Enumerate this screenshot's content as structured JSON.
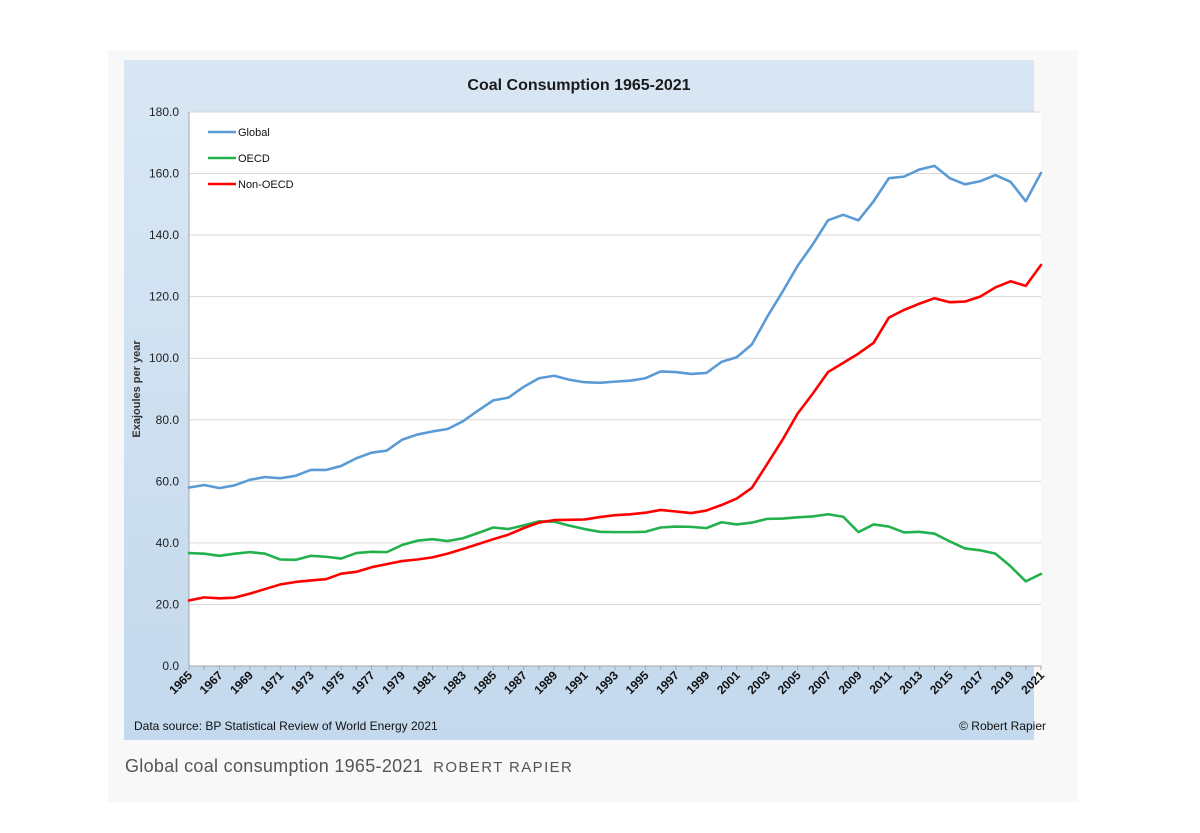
{
  "chart_data": {
    "type": "line",
    "title": "Coal Consumption 1965-2021",
    "xlabel": "",
    "ylabel": "Exajoules per year",
    "ylim": [
      0,
      180
    ],
    "yticks": [
      "0.0",
      "20.0",
      "40.0",
      "60.0",
      "80.0",
      "100.0",
      "120.0",
      "140.0",
      "160.0",
      "180.0"
    ],
    "x_tick_labels": [
      "1965",
      "1967",
      "1969",
      "1971",
      "1973",
      "1975",
      "1977",
      "1979",
      "1981",
      "1983",
      "1985",
      "1987",
      "1989",
      "1991",
      "1993",
      "1995",
      "1997",
      "1999",
      "2001",
      "2003",
      "2005",
      "2007",
      "2009",
      "2011",
      "2013",
      "2015",
      "2017",
      "2019",
      "2021"
    ],
    "x": [
      1965,
      1966,
      1967,
      1968,
      1969,
      1970,
      1971,
      1972,
      1973,
      1974,
      1975,
      1976,
      1977,
      1978,
      1979,
      1980,
      1981,
      1982,
      1983,
      1984,
      1985,
      1986,
      1987,
      1988,
      1989,
      1990,
      1991,
      1992,
      1993,
      1994,
      1995,
      1996,
      1997,
      1998,
      1999,
      2000,
      2001,
      2002,
      2003,
      2004,
      2005,
      2006,
      2007,
      2008,
      2009,
      2010,
      2011,
      2012,
      2013,
      2014,
      2015,
      2016,
      2017,
      2018,
      2019,
      2020,
      2021
    ],
    "grid": true,
    "legend_position": "top-left",
    "series": [
      {
        "name": "Global",
        "color": "#5b9bd5",
        "values": [
          58.0,
          58.8,
          57.8,
          58.7,
          60.5,
          61.4,
          61.0,
          61.8,
          63.7,
          63.7,
          65.0,
          67.5,
          69.3,
          70.0,
          73.5,
          75.2,
          76.2,
          77.0,
          79.5,
          83.0,
          86.3,
          87.2,
          90.7,
          93.5,
          94.3,
          93.0,
          92.2,
          92.0,
          92.4,
          92.7,
          93.5,
          95.7,
          95.5,
          94.9,
          95.2,
          98.8,
          100.3,
          104.5,
          113.4,
          121.5,
          130.0,
          137.0,
          144.8,
          146.6,
          144.8,
          151.0,
          158.5,
          159.0,
          161.3,
          162.5,
          158.5,
          156.5,
          157.5,
          159.5,
          157.3,
          151.0,
          160.2
        ]
      },
      {
        "name": "OECD",
        "color": "#22b14c",
        "values": [
          36.7,
          36.5,
          35.8,
          36.5,
          37.0,
          36.5,
          34.6,
          34.5,
          35.8,
          35.5,
          34.9,
          36.7,
          37.1,
          37.0,
          39.3,
          40.7,
          41.2,
          40.6,
          41.5,
          43.2,
          45.0,
          44.5,
          45.7,
          47.0,
          46.9,
          45.6,
          44.5,
          43.6,
          43.5,
          43.5,
          43.6,
          45.0,
          45.3,
          45.2,
          44.8,
          46.7,
          46.0,
          46.6,
          47.8,
          47.9,
          48.3,
          48.6,
          49.3,
          48.5,
          43.5,
          46.0,
          45.3,
          43.4,
          43.6,
          43.0,
          40.5,
          38.2,
          37.6,
          36.5,
          32.4,
          27.5,
          29.9
        ]
      },
      {
        "name": "Non-OECD",
        "color": "#ff0000",
        "values": [
          21.3,
          22.3,
          22.0,
          22.2,
          23.5,
          25.0,
          26.5,
          27.3,
          27.8,
          28.2,
          30.0,
          30.6,
          32.1,
          33.1,
          34.1,
          34.6,
          35.3,
          36.5,
          38.0,
          39.6,
          41.2,
          42.7,
          44.8,
          46.6,
          47.4,
          47.5,
          47.6,
          48.4,
          49.0,
          49.3,
          49.8,
          50.7,
          50.2,
          49.7,
          50.5,
          52.3,
          54.4,
          57.9,
          65.6,
          73.4,
          82.0,
          88.5,
          95.5,
          98.5,
          101.5,
          105.0,
          113.2,
          115.7,
          117.7,
          119.5,
          118.2,
          118.4,
          120.0,
          123.0,
          125.0,
          123.5,
          130.3
        ]
      }
    ]
  },
  "source_note": "Data source: BP Statistical Review of World Energy 2021",
  "credit_note": "© Robert Rapier",
  "caption": {
    "text": "Global coal consumption 1965-2021",
    "credit": "ROBERT RAPIER"
  }
}
